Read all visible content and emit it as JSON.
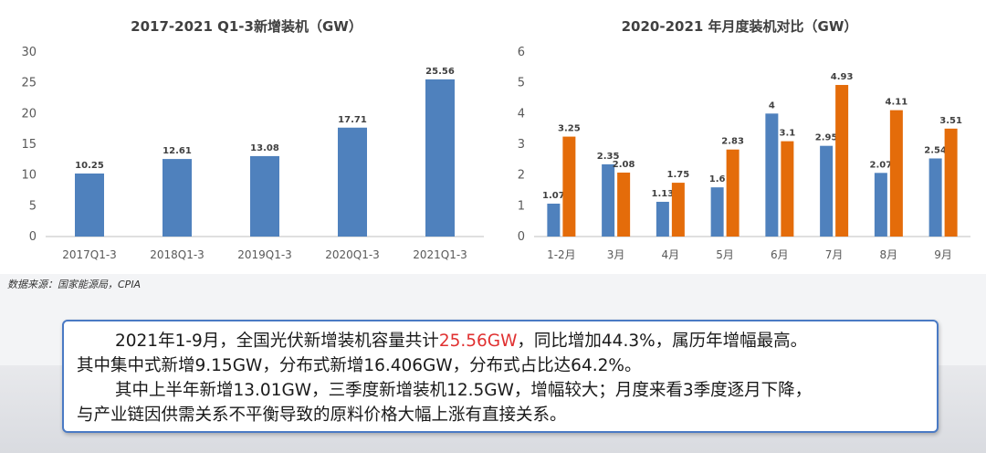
{
  "source_note": "数据来源：国家能源局，CPIA",
  "summary": {
    "p1_prefix": "2021年1-9月，全国光伏新增装机容量共计",
    "p1_highlight": "25.56GW",
    "p1_suffix": "，同比增加44.3%，属历年增幅最高。",
    "p2": "其中集中式新增9.15GW，分布式新增16.406GW，分布式占比达64.2%。",
    "p3": "其中上半年新增13.01GW，三季度新增装机12.5GW，增幅较大；月度来看3季度逐月下降，",
    "p4": "与产业链因供需关系不平衡导致的原料价格大幅上涨有直接关系。"
  },
  "colors": {
    "blue": "#4f81bd",
    "orange": "#e46c0a",
    "highlight": "#e03030",
    "border": "#4a7ac4"
  },
  "chart_data": [
    {
      "type": "bar",
      "title": "2017-2021 Q1-3新增装机（GW）",
      "categories": [
        "2017Q1-3",
        "2018Q1-3",
        "2019Q1-3",
        "2020Q1-3",
        "2021Q1-3"
      ],
      "values": [
        10.25,
        12.61,
        13.08,
        17.71,
        25.56
      ],
      "ylim": [
        0,
        30
      ],
      "yticks": [
        0,
        5,
        10,
        15,
        20,
        25,
        30
      ],
      "grid": false,
      "legend": "none"
    },
    {
      "type": "bar",
      "title": "2020-2021 年月度装机对比（GW）",
      "categories": [
        "1-2月",
        "3月",
        "4月",
        "5月",
        "6月",
        "7月",
        "8月",
        "9月"
      ],
      "series": [
        {
          "values": [
            1.07,
            2.35,
            1.13,
            1.6,
            4,
            2.95,
            2.07,
            2.54
          ]
        },
        {
          "values": [
            3.25,
            2.08,
            1.75,
            2.83,
            3.1,
            4.93,
            4.11,
            3.51
          ]
        }
      ],
      "ylim": [
        0,
        6
      ],
      "yticks": [
        0,
        1,
        2,
        3,
        4,
        5,
        6
      ],
      "grid": false,
      "legend": "none"
    }
  ]
}
